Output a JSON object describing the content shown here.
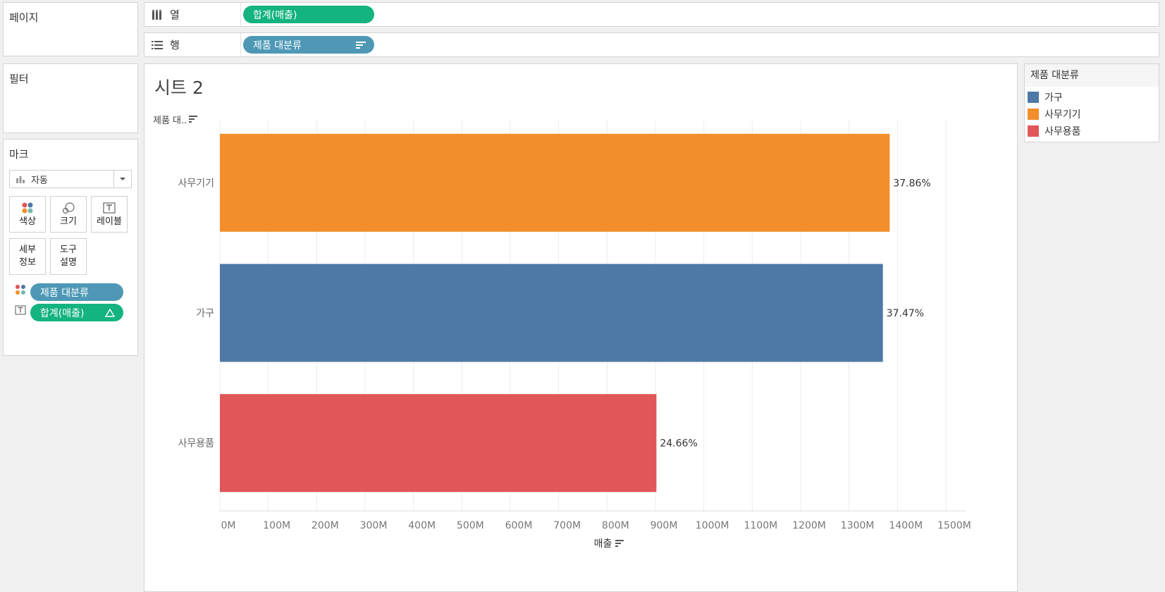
{
  "pages_panel": {
    "title": "페이지"
  },
  "filters_panel": {
    "title": "필터"
  },
  "marks_panel": {
    "title": "마크",
    "mark_type": "자동",
    "buttons": {
      "color": "색상",
      "size": "크기",
      "label": "레이블",
      "detail": "세부\n정보",
      "tooltip": "도구\n설명"
    },
    "fields": [
      {
        "type": "color",
        "label": "제품 대분류"
      },
      {
        "type": "label",
        "label": "합계(매출)"
      }
    ]
  },
  "columns_shelf": {
    "label": "열",
    "pill": "합계(매출)"
  },
  "rows_shelf": {
    "label": "행",
    "pill": "제품 대분류"
  },
  "sheet": {
    "title": "시트 2",
    "row_header": "제품 대.."
  },
  "legend": {
    "title": "제품 대분류",
    "items": [
      {
        "label": "가구",
        "color": "#4e79a7"
      },
      {
        "label": "사무기기",
        "color": "#f28e2b"
      },
      {
        "label": "사무용품",
        "color": "#e15759"
      }
    ]
  },
  "chart_data": {
    "type": "bar",
    "orientation": "horizontal",
    "categories": [
      "사무기기",
      "가구",
      "사무용품"
    ],
    "values": [
      1384,
      1370,
      902
    ],
    "value_unit": "M",
    "labels": [
      "37.86%",
      "37.47%",
      "24.66%"
    ],
    "colors": [
      "#f28e2b",
      "#4e79a7",
      "#e15759"
    ],
    "xlabel": "매출",
    "xlim": [
      0,
      1500
    ],
    "xticks": [
      0,
      100,
      200,
      300,
      400,
      500,
      600,
      700,
      800,
      900,
      1000,
      1100,
      1200,
      1300,
      1400,
      1500
    ],
    "xtick_labels": [
      "0M",
      "100M",
      "200M",
      "300M",
      "400M",
      "500M",
      "600M",
      "700M",
      "800M",
      "900M",
      "1000M",
      "1100M",
      "1200M",
      "1300M",
      "1400M",
      "1500M"
    ],
    "grid": true
  }
}
